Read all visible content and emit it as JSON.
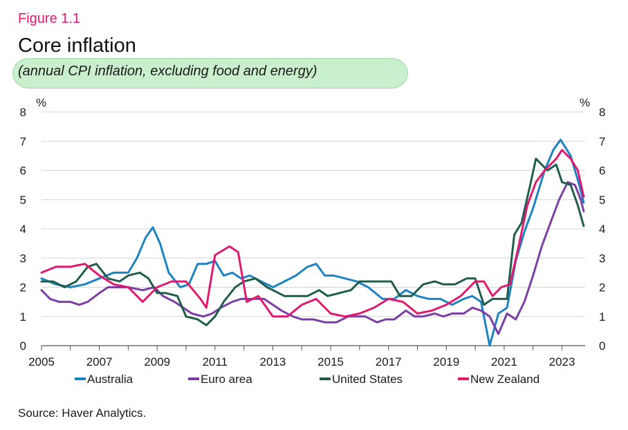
{
  "figure_label": "Figure 1.1",
  "source": "Source: Haver Analytics.",
  "colors": {
    "australia": "#1b82c4",
    "euro_area": "#7a3ea5",
    "united_states": "#1f5c4b",
    "new_zealand": "#e0196e",
    "grid": "#d4d4d4",
    "axis": "#555555",
    "highlight": "#c9efcd"
  },
  "chart_data": {
    "type": "line",
    "title": "Core inflation",
    "subtitle": "(annual CPI inflation, excluding food and energy)",
    "y_unit_left": "%",
    "y_unit_right": "%",
    "ylim": [
      0,
      8
    ],
    "xlim": [
      2005,
      2023.8
    ],
    "x_ticks": [
      "2005",
      "2007",
      "2009",
      "2011",
      "2013",
      "2015",
      "2017",
      "2019",
      "2021",
      "2023"
    ],
    "y_ticks": [
      "0",
      "1",
      "2",
      "3",
      "4",
      "5",
      "6",
      "7",
      "8"
    ],
    "grid": "horizontal",
    "legend_position": "bottom",
    "series": [
      {
        "name": "Australia",
        "key": "australia",
        "points": [
          [
            2005,
            2.3
          ],
          [
            2005.5,
            2.1
          ],
          [
            2006,
            2.0
          ],
          [
            2006.5,
            2.1
          ],
          [
            2007,
            2.3
          ],
          [
            2007.5,
            2.5
          ],
          [
            2008,
            2.5
          ],
          [
            2008.3,
            3.0
          ],
          [
            2008.6,
            3.7
          ],
          [
            2008.85,
            4.05
          ],
          [
            2009.1,
            3.5
          ],
          [
            2009.4,
            2.5
          ],
          [
            2009.8,
            2.0
          ],
          [
            2010.1,
            2.1
          ],
          [
            2010.4,
            2.8
          ],
          [
            2010.7,
            2.8
          ],
          [
            2011.0,
            2.9
          ],
          [
            2011.3,
            2.4
          ],
          [
            2011.6,
            2.5
          ],
          [
            2011.9,
            2.3
          ],
          [
            2012.2,
            2.4
          ],
          [
            2012.6,
            2.2
          ],
          [
            2013,
            2.0
          ],
          [
            2013.4,
            2.2
          ],
          [
            2013.8,
            2.4
          ],
          [
            2014.2,
            2.7
          ],
          [
            2014.5,
            2.8
          ],
          [
            2014.8,
            2.4
          ],
          [
            2015.1,
            2.4
          ],
          [
            2015.5,
            2.3
          ],
          [
            2015.9,
            2.2
          ],
          [
            2016.3,
            2.0
          ],
          [
            2016.8,
            1.6
          ],
          [
            2017.2,
            1.6
          ],
          [
            2017.6,
            1.9
          ],
          [
            2018.0,
            1.7
          ],
          [
            2018.4,
            1.6
          ],
          [
            2018.8,
            1.6
          ],
          [
            2019.2,
            1.4
          ],
          [
            2019.6,
            1.6
          ],
          [
            2019.9,
            1.7
          ],
          [
            2020.2,
            1.5
          ],
          [
            2020.5,
            0.0
          ],
          [
            2020.8,
            1.1
          ],
          [
            2021.1,
            1.3
          ],
          [
            2021.4,
            2.9
          ],
          [
            2021.7,
            3.9
          ],
          [
            2022.0,
            4.7
          ],
          [
            2022.4,
            6.0
          ],
          [
            2022.7,
            6.7
          ],
          [
            2022.95,
            7.05
          ],
          [
            2023.3,
            6.5
          ],
          [
            2023.6,
            5.5
          ],
          [
            2023.75,
            4.9
          ]
        ]
      },
      {
        "name": "Euro area",
        "key": "euro_area",
        "points": [
          [
            2005,
            1.9
          ],
          [
            2005.3,
            1.6
          ],
          [
            2005.6,
            1.5
          ],
          [
            2006,
            1.5
          ],
          [
            2006.3,
            1.4
          ],
          [
            2006.6,
            1.5
          ],
          [
            2007,
            1.8
          ],
          [
            2007.3,
            2.0
          ],
          [
            2007.7,
            2.0
          ],
          [
            2008,
            2.0
          ],
          [
            2008.5,
            1.9
          ],
          [
            2008.9,
            2.0
          ],
          [
            2009.2,
            1.7
          ],
          [
            2009.6,
            1.5
          ],
          [
            2009.9,
            1.3
          ],
          [
            2010.2,
            1.1
          ],
          [
            2010.6,
            1.0
          ],
          [
            2010.9,
            1.1
          ],
          [
            2011.2,
            1.3
          ],
          [
            2011.6,
            1.5
          ],
          [
            2011.9,
            1.6
          ],
          [
            2012.3,
            1.6
          ],
          [
            2012.7,
            1.6
          ],
          [
            2013.0,
            1.4
          ],
          [
            2013.3,
            1.2
          ],
          [
            2013.7,
            1.0
          ],
          [
            2014.0,
            0.9
          ],
          [
            2014.4,
            0.9
          ],
          [
            2014.8,
            0.8
          ],
          [
            2015.2,
            0.8
          ],
          [
            2015.6,
            1.0
          ],
          [
            2015.9,
            1.0
          ],
          [
            2016.2,
            1.0
          ],
          [
            2016.6,
            0.8
          ],
          [
            2016.9,
            0.9
          ],
          [
            2017.2,
            0.9
          ],
          [
            2017.6,
            1.2
          ],
          [
            2017.9,
            1.0
          ],
          [
            2018.2,
            1.0
          ],
          [
            2018.6,
            1.1
          ],
          [
            2018.9,
            1.0
          ],
          [
            2019.2,
            1.1
          ],
          [
            2019.6,
            1.1
          ],
          [
            2019.9,
            1.3
          ],
          [
            2020.2,
            1.2
          ],
          [
            2020.5,
            1.0
          ],
          [
            2020.8,
            0.4
          ],
          [
            2021.1,
            1.1
          ],
          [
            2021.4,
            0.9
          ],
          [
            2021.7,
            1.5
          ],
          [
            2022.0,
            2.4
          ],
          [
            2022.3,
            3.4
          ],
          [
            2022.6,
            4.2
          ],
          [
            2022.9,
            5.0
          ],
          [
            2023.2,
            5.6
          ],
          [
            2023.45,
            5.5
          ],
          [
            2023.65,
            5.0
          ],
          [
            2023.75,
            4.6
          ]
        ]
      },
      {
        "name": "United States",
        "key": "united_states",
        "points": [
          [
            2005,
            2.2
          ],
          [
            2005.4,
            2.2
          ],
          [
            2005.8,
            2.0
          ],
          [
            2006.2,
            2.2
          ],
          [
            2006.6,
            2.7
          ],
          [
            2006.9,
            2.8
          ],
          [
            2007.3,
            2.3
          ],
          [
            2007.7,
            2.2
          ],
          [
            2008.0,
            2.4
          ],
          [
            2008.4,
            2.5
          ],
          [
            2008.7,
            2.3
          ],
          [
            2009.0,
            1.8
          ],
          [
            2009.3,
            1.8
          ],
          [
            2009.7,
            1.7
          ],
          [
            2010.0,
            1.0
          ],
          [
            2010.4,
            0.9
          ],
          [
            2010.7,
            0.7
          ],
          [
            2011.0,
            1.0
          ],
          [
            2011.3,
            1.5
          ],
          [
            2011.7,
            2.0
          ],
          [
            2012.0,
            2.2
          ],
          [
            2012.4,
            2.3
          ],
          [
            2012.8,
            2.0
          ],
          [
            2013.0,
            1.9
          ],
          [
            2013.4,
            1.7
          ],
          [
            2013.8,
            1.7
          ],
          [
            2014.2,
            1.7
          ],
          [
            2014.6,
            1.9
          ],
          [
            2014.9,
            1.7
          ],
          [
            2015.3,
            1.8
          ],
          [
            2015.7,
            1.9
          ],
          [
            2016.0,
            2.2
          ],
          [
            2016.4,
            2.2
          ],
          [
            2016.8,
            2.2
          ],
          [
            2017.1,
            2.2
          ],
          [
            2017.4,
            1.7
          ],
          [
            2017.8,
            1.7
          ],
          [
            2018.2,
            2.1
          ],
          [
            2018.6,
            2.2
          ],
          [
            2018.9,
            2.1
          ],
          [
            2019.3,
            2.1
          ],
          [
            2019.7,
            2.3
          ],
          [
            2020.0,
            2.3
          ],
          [
            2020.3,
            1.4
          ],
          [
            2020.6,
            1.6
          ],
          [
            2020.9,
            1.6
          ],
          [
            2021.1,
            1.6
          ],
          [
            2021.35,
            3.8
          ],
          [
            2021.6,
            4.2
          ],
          [
            2021.9,
            5.5
          ],
          [
            2022.1,
            6.4
          ],
          [
            2022.5,
            6.0
          ],
          [
            2022.8,
            6.2
          ],
          [
            2023.0,
            5.6
          ],
          [
            2023.3,
            5.5
          ],
          [
            2023.55,
            4.8
          ],
          [
            2023.75,
            4.1
          ]
        ]
      },
      {
        "name": "New Zealand",
        "key": "new_zealand",
        "points": [
          [
            2005,
            2.5
          ],
          [
            2005.5,
            2.7
          ],
          [
            2006,
            2.7
          ],
          [
            2006.5,
            2.8
          ],
          [
            2007,
            2.4
          ],
          [
            2007.5,
            2.1
          ],
          [
            2008,
            2.0
          ],
          [
            2008.5,
            1.5
          ],
          [
            2009,
            2.0
          ],
          [
            2009.5,
            2.2
          ],
          [
            2010,
            2.2
          ],
          [
            2010.5,
            1.6
          ],
          [
            2010.7,
            1.3
          ],
          [
            2011.0,
            3.1
          ],
          [
            2011.5,
            3.4
          ],
          [
            2011.8,
            3.2
          ],
          [
            2012.1,
            1.5
          ],
          [
            2012.5,
            1.7
          ],
          [
            2013.0,
            1.0
          ],
          [
            2013.5,
            1.0
          ],
          [
            2014.0,
            1.4
          ],
          [
            2014.5,
            1.6
          ],
          [
            2015.0,
            1.1
          ],
          [
            2015.5,
            1.0
          ],
          [
            2016.0,
            1.1
          ],
          [
            2016.5,
            1.3
          ],
          [
            2017.0,
            1.6
          ],
          [
            2017.5,
            1.5
          ],
          [
            2018.0,
            1.1
          ],
          [
            2018.5,
            1.2
          ],
          [
            2019.0,
            1.4
          ],
          [
            2019.5,
            1.7
          ],
          [
            2020.0,
            2.2
          ],
          [
            2020.3,
            2.2
          ],
          [
            2020.6,
            1.7
          ],
          [
            2020.9,
            2.0
          ],
          [
            2021.2,
            2.1
          ],
          [
            2021.5,
            3.4
          ],
          [
            2021.8,
            4.8
          ],
          [
            2022.1,
            5.6
          ],
          [
            2022.4,
            6.0
          ],
          [
            2022.8,
            6.4
          ],
          [
            2023.0,
            6.7
          ],
          [
            2023.3,
            6.4
          ],
          [
            2023.55,
            6.0
          ],
          [
            2023.75,
            5.1
          ]
        ]
      }
    ]
  }
}
